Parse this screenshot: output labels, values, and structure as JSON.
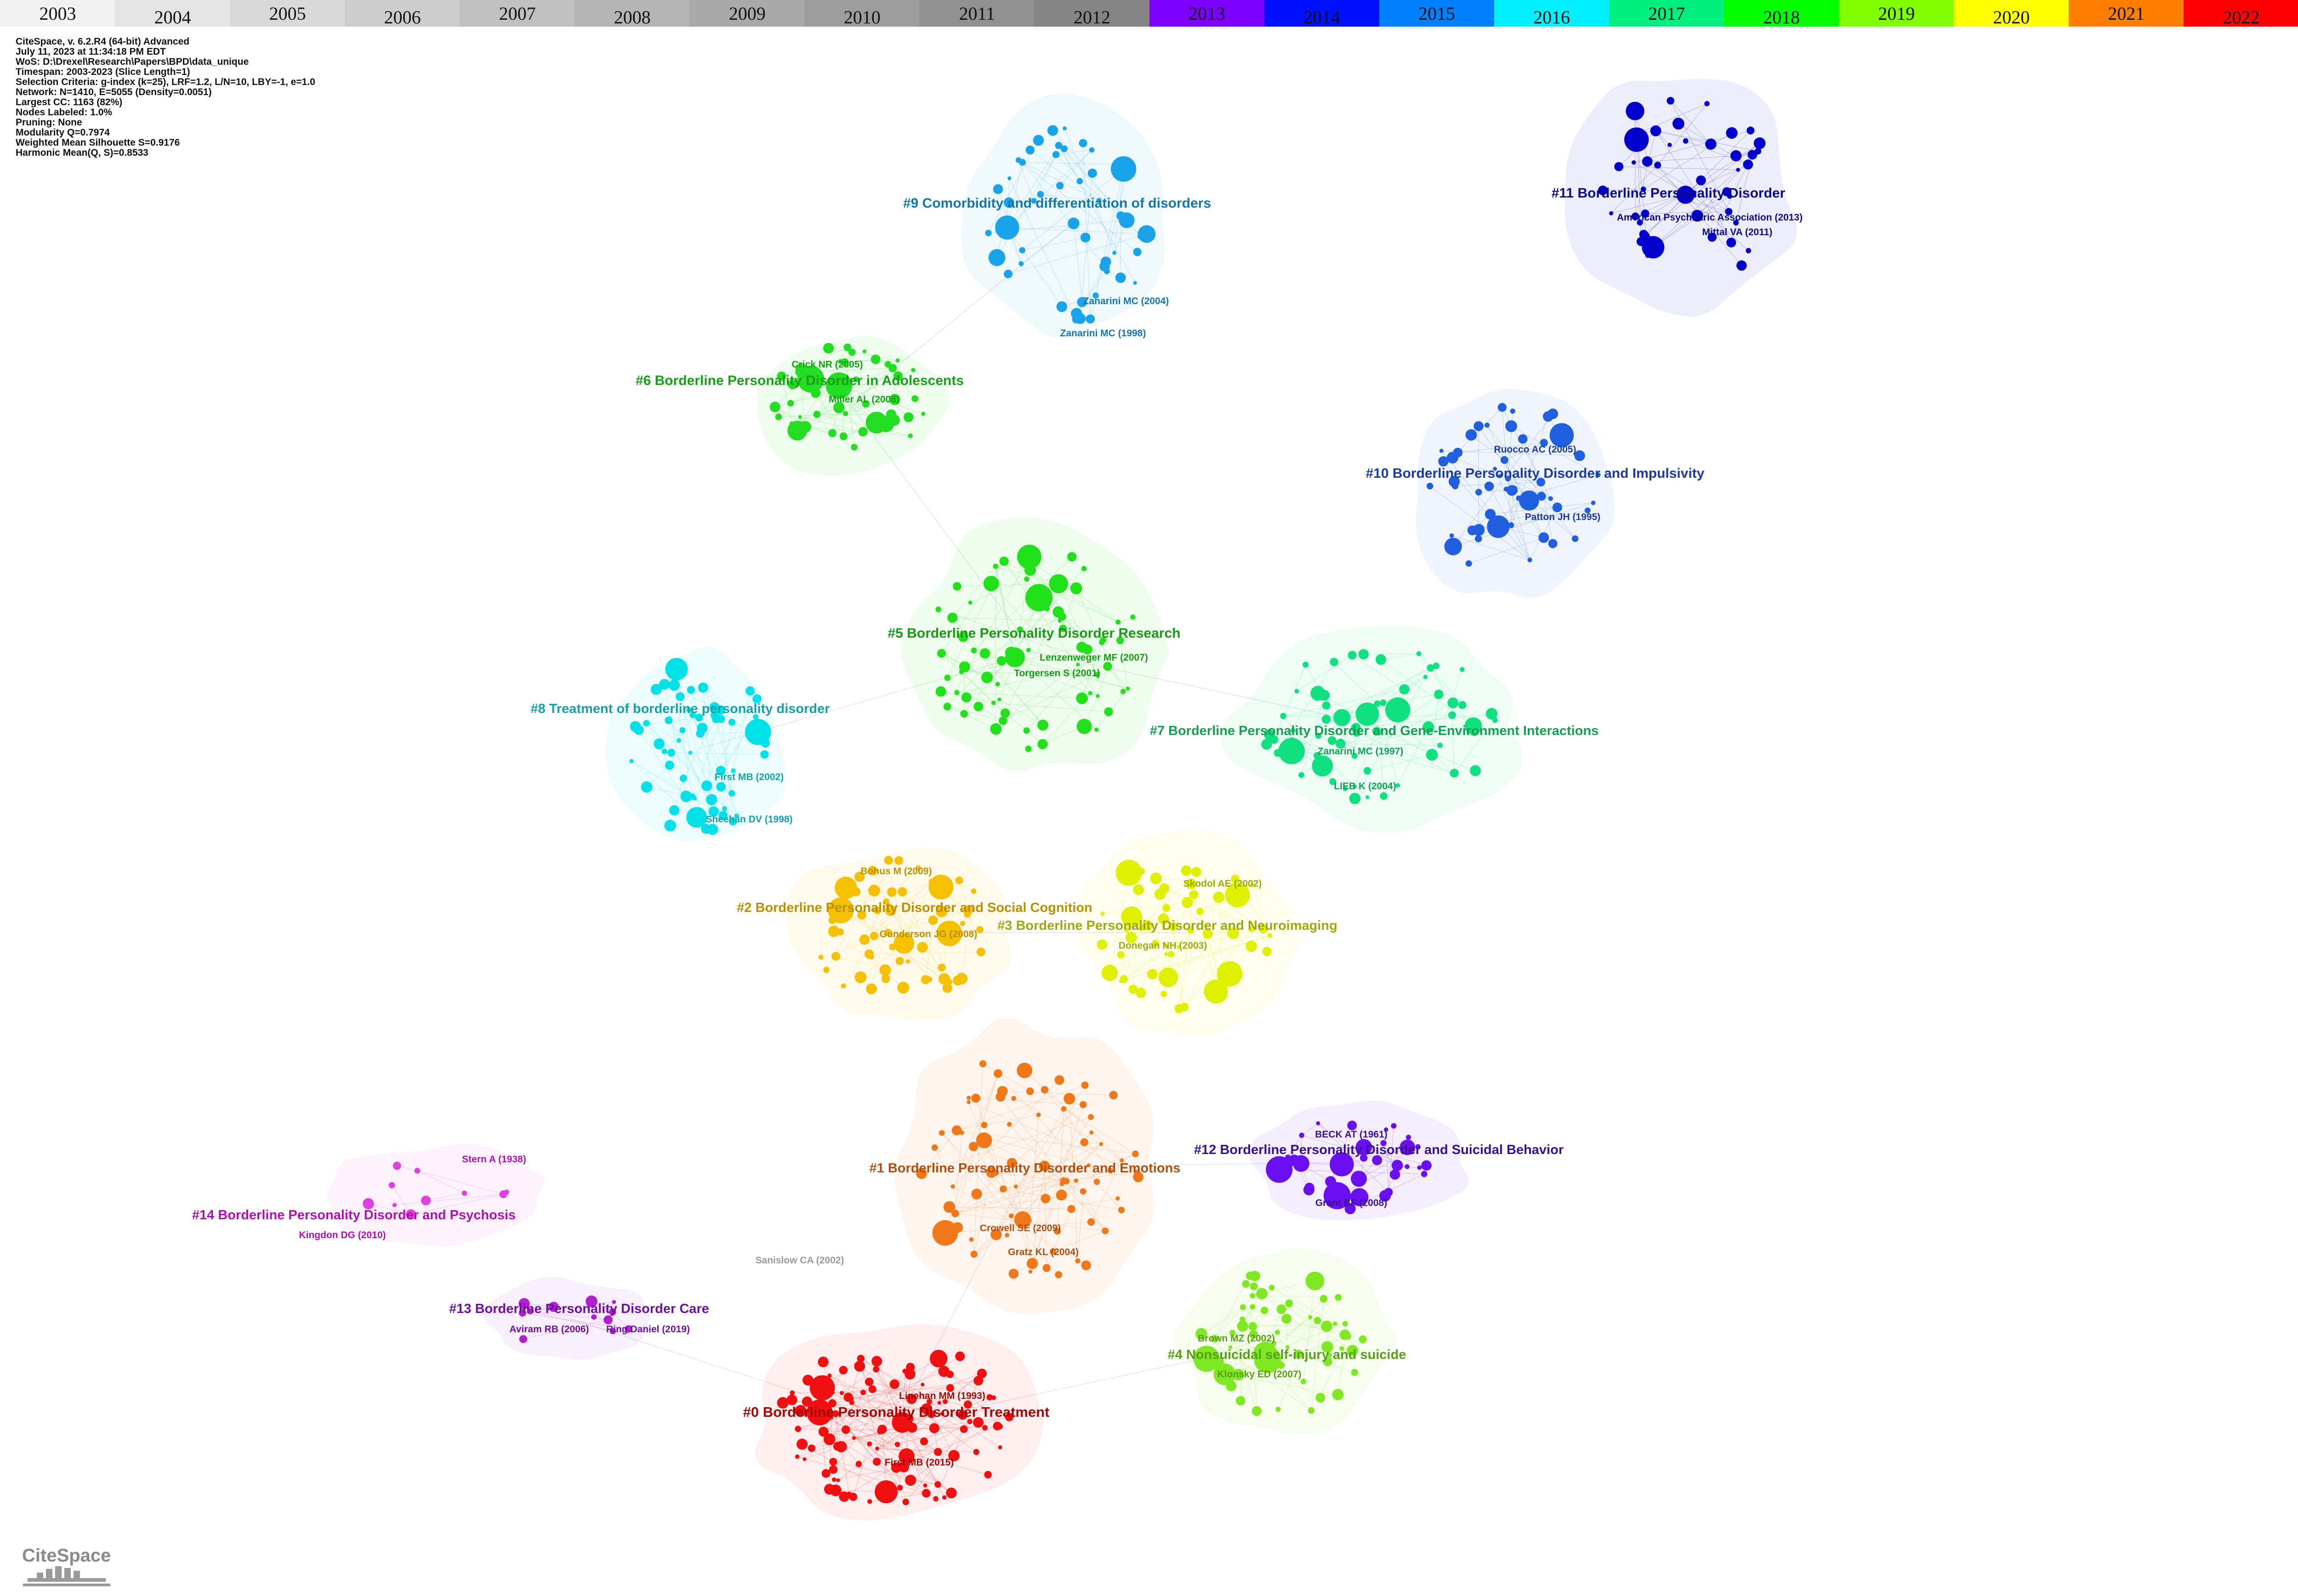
{
  "timeline": [
    {
      "year": "2003",
      "color": "#f2f2f2"
    },
    {
      "year": "2004",
      "color": "#e4e4e4"
    },
    {
      "year": "2005",
      "color": "#d8d8d8"
    },
    {
      "year": "2006",
      "color": "#cccccc"
    },
    {
      "year": "2007",
      "color": "#c0c0c0"
    },
    {
      "year": "2008",
      "color": "#b4b4b4"
    },
    {
      "year": "2009",
      "color": "#a8a8a8"
    },
    {
      "year": "2010",
      "color": "#9c9c9c"
    },
    {
      "year": "2011",
      "color": "#909090"
    },
    {
      "year": "2012",
      "color": "#848484"
    },
    {
      "year": "2013",
      "color": "#7a00ff"
    },
    {
      "year": "2014",
      "color": "#0010ff"
    },
    {
      "year": "2015",
      "color": "#0080ff"
    },
    {
      "year": "2016",
      "color": "#00f0ff"
    },
    {
      "year": "2017",
      "color": "#00f080"
    },
    {
      "year": "2018",
      "color": "#00ff00"
    },
    {
      "year": "2019",
      "color": "#80ff00"
    },
    {
      "year": "2020",
      "color": "#ffff00"
    },
    {
      "year": "2021",
      "color": "#ff8000"
    },
    {
      "year": "2022",
      "color": "#ff0000"
    }
  ],
  "info_lines": [
    "CiteSpace, v. 6.2.R4 (64-bit) Advanced",
    "July 11, 2023 at 11:34:18 PM EDT",
    "WoS: D:\\Drexel\\Research\\Papers\\BPD\\data_unique",
    "Timespan: 2003-2023 (Slice Length=1)",
    "Selection Criteria: g-index (k=25), LRF=1.2, L/N=10, LBY=-1, e=1.0",
    "Network: N=1410, E=5055 (Density=0.0051)",
    "Largest CC: 1163 (82%)",
    "Nodes Labeled: 1.0%",
    "Pruning: None",
    "Modularity Q=0.7974",
    "Weighted Mean Silhouette S=0.9176",
    "Harmonic Mean(Q, S)=0.8533"
  ],
  "clusters": [
    {
      "id": "c11",
      "label": "#11 Borderline Personality Disorder",
      "color": "#0000cc",
      "label_color": "#0a0a8a",
      "refs": [
        "American Psychiatric Association (2013)",
        "Mittal VA (2011)"
      ]
    },
    {
      "id": "c9",
      "label": "#9 Comorbidity and differentiation of disorders",
      "color": "#1aa3e8",
      "label_color": "#1577a8",
      "refs": [
        "Zanarini MC (2004)",
        "Zanarini MC (1998)"
      ]
    },
    {
      "id": "c6",
      "label": "#6 Borderline Personality Disorder in Adolescents",
      "color": "#22dd22",
      "label_color": "#18a018",
      "refs": [
        "Crick NR (2005)",
        "Miller AL (2008)"
      ]
    },
    {
      "id": "c10",
      "label": "#10 Borderline Personality Disorder and Impulsivity",
      "color": "#1f5fe0",
      "label_color": "#1a3aa0",
      "refs": [
        "Ruocco AC (2005)",
        "Patton JH (1995)"
      ]
    },
    {
      "id": "c5",
      "label": "#5 Borderline Personality Disorder Research",
      "color": "#22e01a",
      "label_color": "#1a9a14",
      "refs": [
        "Lenzenweger MF (2007)",
        "Torgersen S (2001)"
      ]
    },
    {
      "id": "c8",
      "label": "#8 Treatment of borderline personality disorder",
      "color": "#00e0e8",
      "label_color": "#16a0a8",
      "refs": [
        "First MB (2002)",
        "Sheehan DV (1998)"
      ]
    },
    {
      "id": "c7",
      "label": "#7 Borderline Personality Disorder and Gene-Environment Interactions",
      "color": "#10e080",
      "label_color": "#14a050",
      "refs": [
        "Zanarini MC (1997)",
        "LIEB K (2004)"
      ]
    },
    {
      "id": "c2",
      "label": "#2 Borderline Personality Disorder and Social Cognition",
      "color": "#f5c000",
      "label_color": "#b89000",
      "refs": [
        "Bohus M (2009)",
        "Gunderson JG (2008)"
      ]
    },
    {
      "id": "c3",
      "label": "#3 Borderline Personality Disorder and Neuroimaging",
      "color": "#e0f000",
      "label_color": "#a0a810",
      "refs": [
        "Skodol AE (2002)",
        "Donegan NH (2003)"
      ]
    },
    {
      "id": "c1",
      "label": "#1 Borderline Personality Disorder and Emotions",
      "color": "#f07818",
      "label_color": "#b05010",
      "refs": [
        "Crowell SE (2009)",
        "Gratz KL (2004)"
      ]
    },
    {
      "id": "c12",
      "label": "#12 Borderline Personality Disorder and Suicidal Behavior",
      "color": "#6a10f0",
      "label_color": "#3a1090",
      "refs": [
        "BECK AT (1961)",
        "Grant BF (2008)"
      ]
    },
    {
      "id": "c14",
      "label": "#14 Borderline Personality Disorder and Psychosis",
      "color": "#e040e0",
      "label_color": "#b010b0",
      "refs": [
        "Stern A (1938)",
        "Kingdon DG (2010)"
      ]
    },
    {
      "id": "c13",
      "label": "#13 Borderline Personality Disorder Care",
      "color": "#b020d0",
      "label_color": "#7010a0",
      "refs": [
        "Aviram RB (2006)",
        "Ring Daniel (2019)"
      ]
    },
    {
      "id": "c4",
      "label": "#4 Nonsuicidal self-injury and suicide",
      "color": "#80e820",
      "label_color": "#58a018",
      "refs": [
        "Brown MZ (2002)",
        "Klonsky ED (2007)"
      ]
    },
    {
      "id": "c0",
      "label": "#0 Borderline Personality Disorder Treatment",
      "color": "#f01010",
      "label_color": "#a00808",
      "refs": [
        "Linehan MM (1993)",
        "First MB (2015)"
      ]
    }
  ],
  "isolated_label": "Sanislow CA (2002)",
  "logo_text": "CiteSpace"
}
